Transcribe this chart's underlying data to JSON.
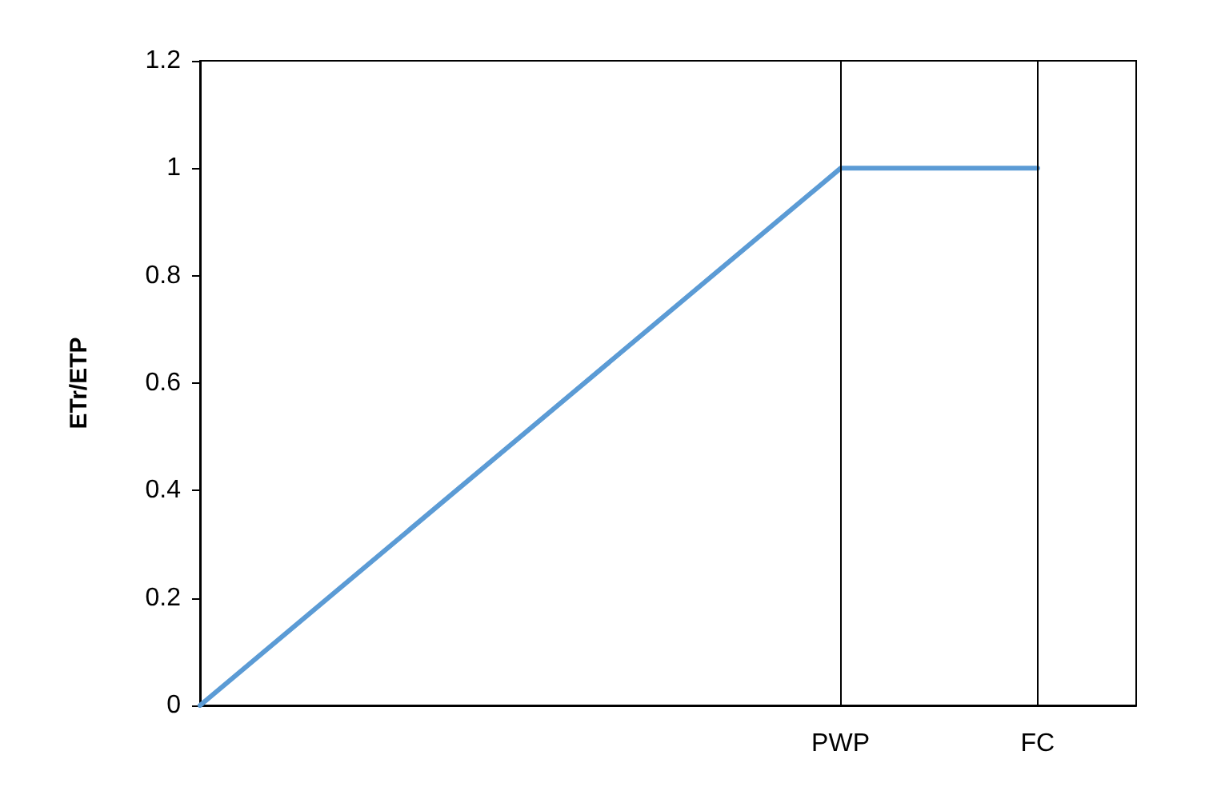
{
  "chart_data": {
    "type": "line",
    "ylabel": "ETr/ETP",
    "categories": [
      null,
      null,
      null,
      null,
      null,
      null,
      null,
      null,
      null,
      null,
      null,
      null,
      null,
      "PWP",
      null,
      null,
      null,
      "FC",
      null,
      null
    ],
    "ylim": [
      0,
      1.2
    ],
    "yticks": [
      0,
      0.2,
      0.4,
      0.6,
      0.8,
      1,
      1.2
    ],
    "grid": false,
    "marker": "none",
    "line_style": "solid",
    "series": [
      {
        "color": "#5b9bd5",
        "values": [
          0,
          null,
          null,
          null,
          null,
          null,
          null,
          null,
          null,
          null,
          null,
          null,
          null,
          1,
          null,
          null,
          null,
          1,
          null,
          null
        ]
      }
    ],
    "ref_lines": [
      {
        "axis": "x",
        "value": "PWP",
        "color": "#000000"
      },
      {
        "axis": "x",
        "value": "FC",
        "color": "#000000"
      }
    ]
  }
}
